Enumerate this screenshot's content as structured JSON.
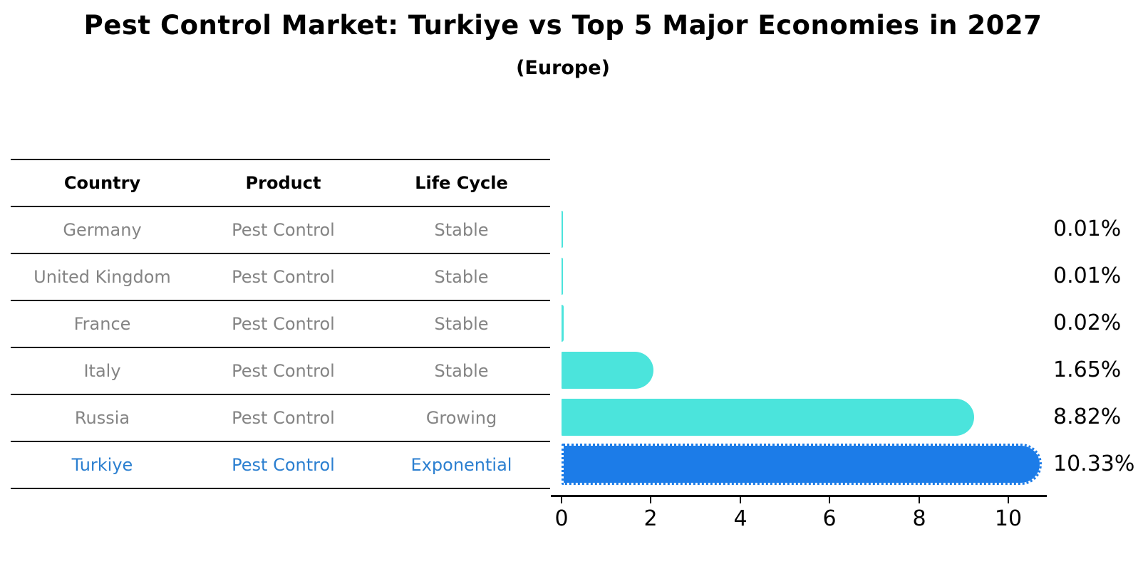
{
  "header": {
    "title": "Pest Control Market: Turkiye vs Top 5 Major Economies in 2027",
    "subtitle": "(Europe)"
  },
  "table": {
    "headers": [
      "Country",
      "Product",
      "Life Cycle"
    ],
    "rows": [
      {
        "country": "Germany",
        "product": "Pest Control",
        "life_cycle": "Stable",
        "highlight": false
      },
      {
        "country": "United Kingdom",
        "product": "Pest Control",
        "life_cycle": "Stable",
        "highlight": false
      },
      {
        "country": "France",
        "product": "Pest Control",
        "life_cycle": "Stable",
        "highlight": false
      },
      {
        "country": "Italy",
        "product": "Pest Control",
        "life_cycle": "Stable",
        "highlight": false
      },
      {
        "country": "Russia",
        "product": "Pest Control",
        "life_cycle": "Growing",
        "highlight": false
      },
      {
        "country": "Turkiye",
        "product": "Pest Control",
        "life_cycle": "Exponential",
        "highlight": true
      }
    ]
  },
  "chart_data": {
    "type": "bar",
    "orientation": "horizontal",
    "title": "Pest Control Market: Turkiye vs Top 5 Major Economies in 2027",
    "subtitle": "(Europe)",
    "categories": [
      "Germany",
      "United Kingdom",
      "France",
      "Italy",
      "Russia",
      "Turkiye"
    ],
    "values": [
      0.01,
      0.01,
      0.02,
      1.65,
      8.82,
      10.33
    ],
    "value_labels": [
      "0.01%",
      "0.01%",
      "0.02%",
      "1.65%",
      "8.82%",
      "10.33%"
    ],
    "x_ticks": [
      0,
      2,
      4,
      6,
      8,
      10
    ],
    "x_tick_labels": [
      "0",
      "2",
      "4",
      "6",
      "8",
      "10"
    ],
    "xlim": [
      0,
      10.85
    ],
    "grid": false,
    "legend": "none",
    "bar_color": "#4be4dc",
    "highlight_color": "#1c7ce8",
    "highlight_index": 5,
    "highlight_text_color": "#2b7fd0"
  }
}
